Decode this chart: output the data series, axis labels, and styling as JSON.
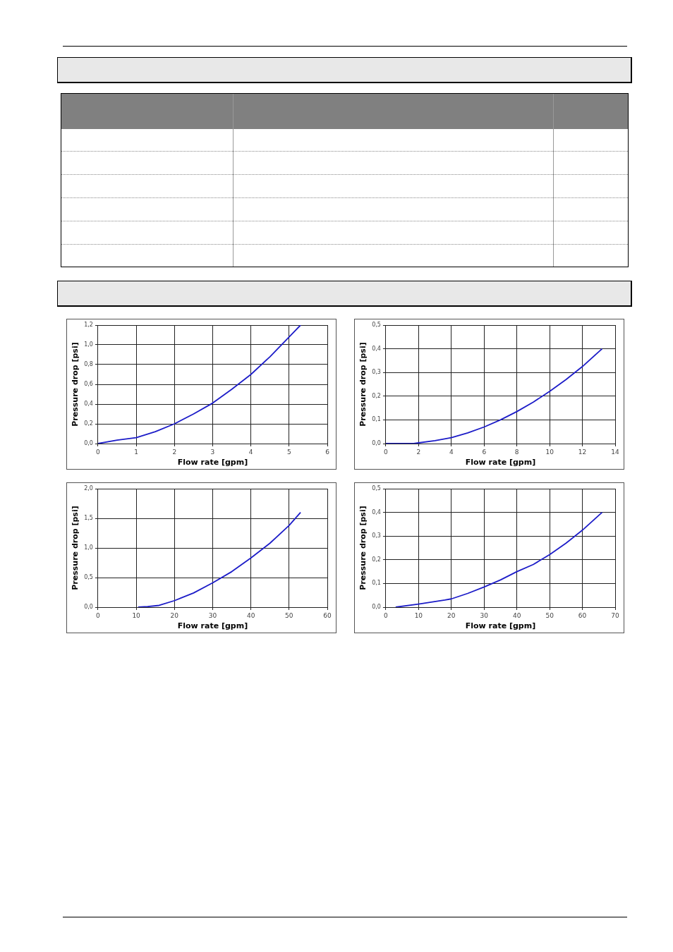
{
  "chart_data": [
    {
      "type": "line",
      "xlabel": "Flow rate [gpm]",
      "ylabel": "Pressure drop [psi]",
      "grid": true,
      "legend": false,
      "marker": "none",
      "line_style": "solid",
      "series": [
        {
          "color": "#1c1cc8",
          "x": [
            0,
            0.5,
            1,
            1.5,
            2,
            2.5,
            3,
            3.5,
            4,
            4.5,
            5,
            5.3
          ],
          "values": [
            0,
            0.035,
            0.06,
            0.12,
            0.2,
            0.3,
            0.41,
            0.55,
            0.7,
            0.88,
            1.08,
            1.2
          ]
        }
      ],
      "xlim": [
        0,
        6
      ],
      "xticks": [
        0,
        1,
        2,
        3,
        4,
        5,
        6
      ],
      "ylim": [
        0,
        1.2
      ],
      "yticks": [
        {
          "value": 0,
          "label": "0,0"
        },
        {
          "value": 0.2,
          "label": "0,2"
        },
        {
          "value": 0.4,
          "label": "0,4"
        },
        {
          "value": 0.6,
          "label": "0,6"
        },
        {
          "value": 0.8,
          "label": "0,8"
        },
        {
          "value": 1,
          "label": "1,0"
        },
        {
          "value": 1.2,
          "label": "1,2"
        }
      ]
    },
    {
      "type": "line",
      "xlabel": "Flow rate [gpm]",
      "ylabel": "Pressure drop [psi]",
      "grid": true,
      "legend": false,
      "marker": "none",
      "line_style": "solid",
      "series": [
        {
          "color": "#1c1cc8",
          "x": [
            0,
            1.7,
            2,
            3,
            4,
            5,
            6,
            7,
            8,
            9,
            10,
            11,
            12,
            13.2
          ],
          "values": [
            0,
            0,
            0.003,
            0.012,
            0.025,
            0.045,
            0.07,
            0.1,
            0.135,
            0.175,
            0.22,
            0.27,
            0.325,
            0.4
          ]
        }
      ],
      "xlim": [
        0,
        14
      ],
      "xticks": [
        0,
        2,
        4,
        6,
        8,
        10,
        12,
        14
      ],
      "ylim": [
        0,
        0.5
      ],
      "yticks": [
        {
          "value": 0,
          "label": "0,0"
        },
        {
          "value": 0.1,
          "label": "0,1"
        },
        {
          "value": 0.2,
          "label": "0,2"
        },
        {
          "value": 0.3,
          "label": "0,3"
        },
        {
          "value": 0.4,
          "label": "0,4"
        },
        {
          "value": 0.5,
          "label": "0,5"
        }
      ]
    },
    {
      "type": "line",
      "xlabel": "Flow rate [gpm]",
      "ylabel": "Pressure drop [psi]",
      "grid": true,
      "legend": false,
      "marker": "none",
      "line_style": "solid",
      "series": [
        {
          "color": "#1c1cc8",
          "x": [
            10.5,
            13,
            16,
            20,
            25,
            30,
            35,
            40,
            45,
            50,
            53
          ],
          "values": [
            0,
            0.01,
            0.03,
            0.11,
            0.24,
            0.41,
            0.6,
            0.83,
            1.08,
            1.38,
            1.6
          ]
        }
      ],
      "xlim": [
        0,
        60
      ],
      "xticks": [
        0,
        10,
        20,
        30,
        40,
        50,
        60
      ],
      "ylim": [
        0,
        2
      ],
      "yticks": [
        {
          "value": 0,
          "label": "0,0"
        },
        {
          "value": 0.5,
          "label": "0,5"
        },
        {
          "value": 1,
          "label": "1,0"
        },
        {
          "value": 1.5,
          "label": "1,5"
        },
        {
          "value": 2,
          "label": "2,0"
        }
      ]
    },
    {
      "type": "line",
      "xlabel": "Flow rate [gpm]",
      "ylabel": "Pressure drop [psi]",
      "grid": true,
      "legend": false,
      "marker": "none",
      "line_style": "solid",
      "series": [
        {
          "color": "#1c1cc8",
          "x": [
            3,
            10,
            18,
            20,
            25,
            30,
            35,
            40,
            45,
            50,
            55,
            60,
            66
          ],
          "values": [
            0,
            0.013,
            0.03,
            0.035,
            0.058,
            0.085,
            0.115,
            0.15,
            0.18,
            0.222,
            0.27,
            0.325,
            0.4
          ]
        }
      ],
      "xlim": [
        0,
        70
      ],
      "xticks": [
        0,
        10,
        20,
        30,
        40,
        50,
        60,
        70
      ],
      "ylim": [
        0,
        0.5
      ],
      "yticks": [
        {
          "value": 0,
          "label": "0,0"
        },
        {
          "value": 0.1,
          "label": "0,1"
        },
        {
          "value": 0.2,
          "label": "0,2"
        },
        {
          "value": 0.3,
          "label": "0,3"
        },
        {
          "value": 0.4,
          "label": "0,4"
        },
        {
          "value": 0.5,
          "label": "0,5"
        }
      ]
    }
  ]
}
